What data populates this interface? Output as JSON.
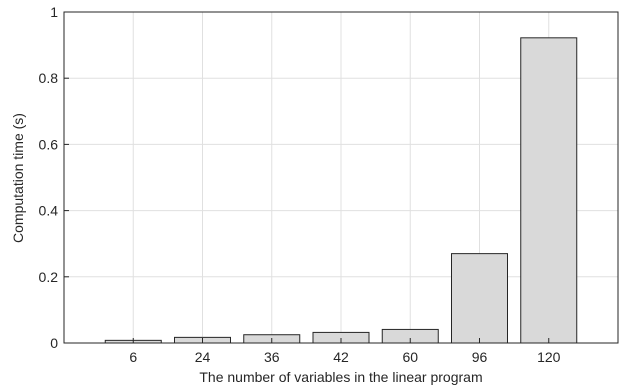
{
  "chart_data": {
    "type": "bar",
    "title": "",
    "xlabel": "The number of variables in the linear program",
    "ylabel": "Computation time (s)",
    "categories": [
      "6",
      "24",
      "36",
      "42",
      "60",
      "96",
      "120"
    ],
    "values": [
      0.008,
      0.017,
      0.025,
      0.032,
      0.041,
      0.27,
      0.922
    ],
    "ylim": [
      0,
      1
    ],
    "yticks": [
      0,
      0.2,
      0.4,
      0.6,
      0.8,
      1
    ],
    "ytick_labels": [
      "0",
      "0.2",
      "0.4",
      "0.6",
      "0.8",
      "1"
    ],
    "grid": true,
    "bar_color": "#d9d9d9",
    "bar_edge_color": "#262626",
    "grid_color": "#e0e0e0"
  }
}
